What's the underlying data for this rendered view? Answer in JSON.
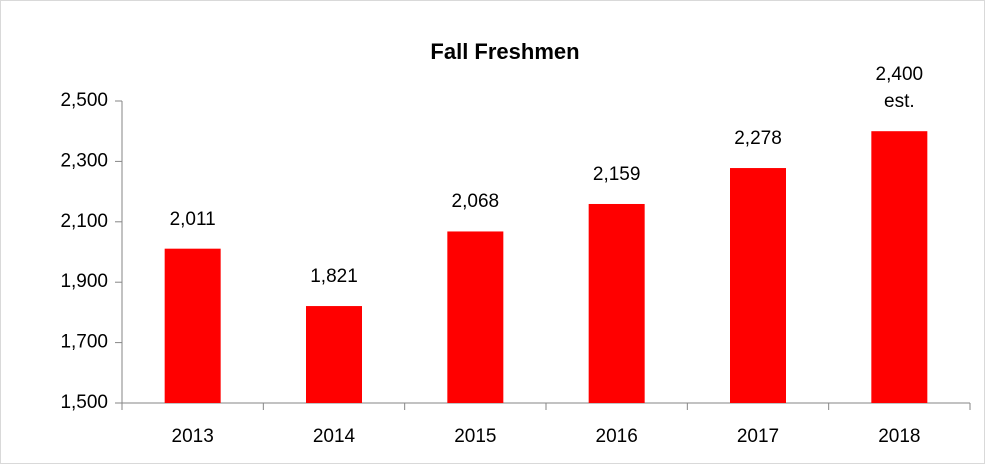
{
  "chart_data": {
    "type": "bar",
    "title": "Fall Freshmen",
    "categories": [
      "2013",
      "2014",
      "2015",
      "2016",
      "2017",
      "2018"
    ],
    "values": [
      2011,
      1821,
      2068,
      2159,
      2278,
      2400
    ],
    "value_labels": [
      "2,011",
      "1,821",
      "2,068",
      "2,159",
      "2,278",
      "2,400 est."
    ],
    "color": "#ff0000",
    "ylim": [
      1500,
      2500
    ],
    "yticks": [
      {
        "value": 1500,
        "label": "1,500"
      },
      {
        "value": 1700,
        "label": "1,700"
      },
      {
        "value": 1900,
        "label": "1,900"
      },
      {
        "value": 2100,
        "label": "2,100"
      },
      {
        "value": 2300,
        "label": "2,300"
      },
      {
        "value": 2500,
        "label": "2,500"
      }
    ],
    "grid": false
  }
}
